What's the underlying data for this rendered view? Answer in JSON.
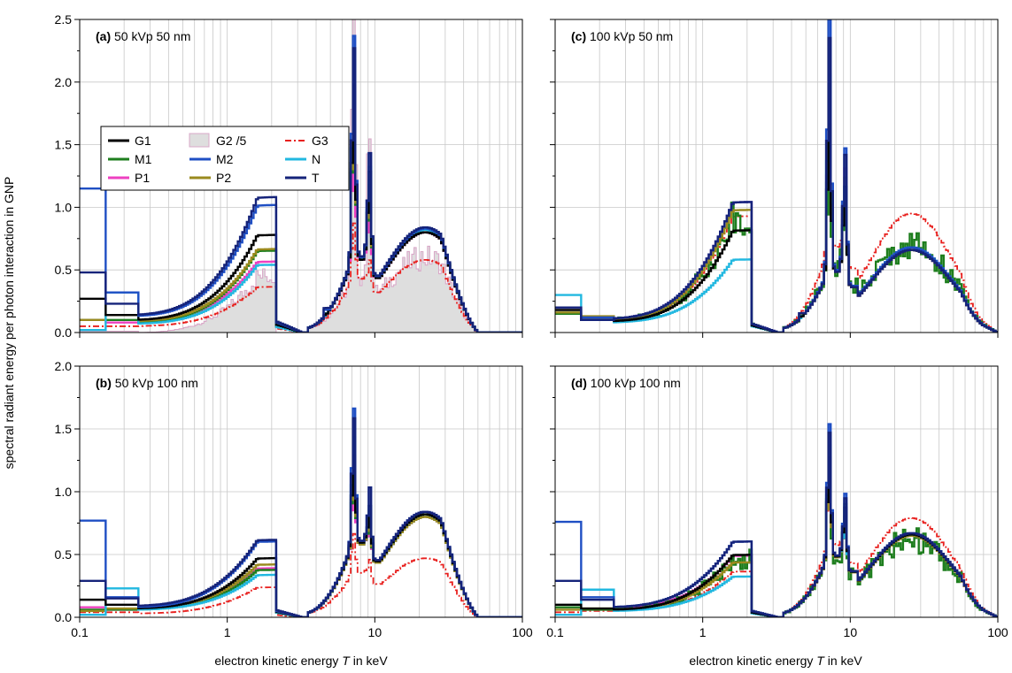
{
  "figure": {
    "ylabel": "spectral radiant energy per photon interaction in GNP",
    "xlabel_prefix": "electron kinetic energy ",
    "xlabel_var": "T",
    "xlabel_suffix": " in keV"
  },
  "legend": [
    {
      "name": "G1",
      "color": "#000000",
      "style": "solid"
    },
    {
      "name": "G2 /5",
      "color": "#d9a8c8",
      "style": "fill",
      "fill": "#dedede"
    },
    {
      "name": "G3",
      "color": "#e8201e",
      "style": "dashdot"
    },
    {
      "name": "M1",
      "color": "#1e7e1e",
      "style": "solid"
    },
    {
      "name": "M2",
      "color": "#1f4fc4",
      "style": "solid"
    },
    {
      "name": "N",
      "color": "#22b8e0",
      "style": "solid"
    },
    {
      "name": "P1",
      "color": "#ee40c0",
      "style": "solid"
    },
    {
      "name": "P2",
      "color": "#9a8a1e",
      "style": "solid"
    },
    {
      "name": "T",
      "color": "#15237a",
      "style": "solid"
    }
  ],
  "chart_data": [
    {
      "type": "line",
      "panel": "(a)",
      "title_parts": [
        "(a)",
        "50 kVp  50 nm"
      ],
      "xlim": [
        0.1,
        100
      ],
      "xscale": "log",
      "ylim": [
        0,
        2.5
      ],
      "yticks": [
        "0.0",
        "0.5",
        "1.0",
        "1.5",
        "2.0",
        "2.5"
      ],
      "xticks": [
        "0.1",
        "1",
        "10",
        "100"
      ],
      "grid": true,
      "legend_position": "top-left",
      "peaks": {
        "p1": 1.8,
        "p2": 7.2,
        "p3": 9.2,
        "hump": 22,
        "cutoff": 50
      },
      "series": [
        {
          "name": "G1",
          "step": [
            0.27,
            0.14
          ],
          "amps": [
            0.65,
            1.9,
            1.65,
            0.8
          ],
          "base": 0.1
        },
        {
          "name": "G3",
          "step": [
            0.05,
            0.05
          ],
          "amps": [
            0.3,
            0.8,
            0.7,
            0.58
          ],
          "base": 0.05
        },
        {
          "name": "M1",
          "step": [
            0.1,
            0.1
          ],
          "amps": [
            0.55,
            1.75,
            1.5,
            0.82
          ],
          "base": 0.08
        },
        {
          "name": "M2",
          "step": [
            1.15,
            0.32
          ],
          "amps": [
            0.85,
            2.3,
            1.85,
            0.83
          ],
          "base": 0.13
        },
        {
          "name": "N",
          "step": [
            0.02,
            0.32
          ],
          "amps": [
            0.45,
            2.1,
            1.7,
            0.82
          ],
          "base": 0.07
        },
        {
          "name": "P1",
          "step": [
            0.1,
            0.08
          ],
          "amps": [
            0.45,
            1.5,
            1.3,
            0.8
          ],
          "base": 0.09
        },
        {
          "name": "P2",
          "step": [
            0.1,
            0.14
          ],
          "amps": [
            0.55,
            1.8,
            1.55,
            0.82
          ],
          "base": 0.09
        },
        {
          "name": "T",
          "step": [
            0.48,
            0.23
          ],
          "amps": [
            0.9,
            2.2,
            1.85,
            0.84
          ],
          "base": 0.14
        },
        {
          "name": "G2 /5",
          "step": [
            0.01,
            0.01
          ],
          "amps": [
            0.45,
            2.5,
            2.4,
            0.6
          ],
          "base": 0.0
        }
      ]
    },
    {
      "type": "line",
      "panel": "(c)",
      "title_parts": [
        "(c)",
        "100 kVp  50 nm"
      ],
      "xlim": [
        0.1,
        100
      ],
      "xscale": "log",
      "ylim": [
        0,
        2.5
      ],
      "yticks": [
        "0.0",
        "0.5",
        "1.0",
        "1.5",
        "2.0",
        "2.5"
      ],
      "xticks": [
        "0.1",
        "1",
        "10",
        "100"
      ],
      "grid": true,
      "peaks": {
        "p1": 1.8,
        "p2": 7.2,
        "p3": 9.2,
        "hump": 26,
        "cutoff": 100
      },
      "series": [
        {
          "name": "G1",
          "step": [
            0.18,
            0.1
          ],
          "amps": [
            0.7,
            1.6,
            1.5,
            0.66
          ],
          "base": 0.09
        },
        {
          "name": "G3",
          "step": [
            0.15,
            0.1
          ],
          "amps": [
            0.8,
            1.5,
            1.3,
            0.95
          ],
          "base": 0.1
        },
        {
          "name": "M1",
          "step": [
            0.15,
            0.12
          ],
          "amps": [
            0.8,
            1.55,
            1.6,
            0.7
          ],
          "base": 0.1
        },
        {
          "name": "M2",
          "step": [
            0.2,
            0.12
          ],
          "amps": [
            0.9,
            2.45,
            1.92,
            0.68
          ],
          "base": 0.11
        },
        {
          "name": "N",
          "step": [
            0.3,
            0.1
          ],
          "amps": [
            0.48,
            2.0,
            1.5,
            0.68
          ],
          "base": 0.08
        },
        {
          "name": "P1",
          "step": [
            0.2,
            0.12
          ],
          "amps": [
            0.9,
            1.8,
            1.7,
            0.66
          ],
          "base": 0.11
        },
        {
          "name": "P2",
          "step": [
            0.16,
            0.13
          ],
          "amps": [
            0.85,
            1.7,
            1.6,
            0.66
          ],
          "base": 0.1
        },
        {
          "name": "T",
          "step": [
            0.2,
            0.1
          ],
          "amps": [
            0.9,
            2.3,
            1.85,
            0.66
          ],
          "base": 0.11
        }
      ]
    },
    {
      "type": "line",
      "panel": "(b)",
      "title_parts": [
        "(b)",
        "50 kVp 100 nm"
      ],
      "xlim": [
        0.1,
        100
      ],
      "xscale": "log",
      "ylim": [
        0,
        2.0
      ],
      "yticks": [
        "0.0",
        "0.5",
        "1.0",
        "1.5",
        "2.0"
      ],
      "xticks": [
        "0.1",
        "1",
        "10",
        "100"
      ],
      "grid": true,
      "peaks": {
        "p1": 1.8,
        "p2": 7.2,
        "p3": 9.2,
        "hump": 22,
        "cutoff": 50
      },
      "series": [
        {
          "name": "G1",
          "step": [
            0.14,
            0.1
          ],
          "amps": [
            0.38,
            1.2,
            1.1,
            0.82
          ],
          "base": 0.07
        },
        {
          "name": "G3",
          "step": [
            0.04,
            0.04
          ],
          "amps": [
            0.2,
            0.6,
            0.55,
            0.47
          ],
          "base": 0.03
        },
        {
          "name": "M1",
          "step": [
            0.06,
            0.06
          ],
          "amps": [
            0.3,
            1.1,
            1.0,
            0.8
          ],
          "base": 0.06
        },
        {
          "name": "M2",
          "step": [
            0.77,
            0.16
          ],
          "amps": [
            0.5,
            1.58,
            1.3,
            0.84
          ],
          "base": 0.08
        },
        {
          "name": "N",
          "step": [
            0.02,
            0.23
          ],
          "amps": [
            0.26,
            1.35,
            1.1,
            0.82
          ],
          "base": 0.06
        },
        {
          "name": "P1",
          "step": [
            0.08,
            0.06
          ],
          "amps": [
            0.3,
            1.0,
            0.95,
            0.8
          ],
          "base": 0.07
        },
        {
          "name": "P2",
          "step": [
            0.05,
            0.07
          ],
          "amps": [
            0.33,
            1.15,
            1.05,
            0.8
          ],
          "base": 0.07
        },
        {
          "name": "T",
          "step": [
            0.29,
            0.15
          ],
          "amps": [
            0.5,
            1.5,
            1.3,
            0.84
          ],
          "base": 0.09
        }
      ]
    },
    {
      "type": "line",
      "panel": "(d)",
      "title_parts": [
        "(d)",
        "100 kVp 100 nm"
      ],
      "xlim": [
        0.1,
        100
      ],
      "xscale": "log",
      "ylim": [
        0,
        2.0
      ],
      "yticks": [
        "0.0",
        "0.5",
        "1.0",
        "1.5",
        "2.0"
      ],
      "xticks": [
        "0.1",
        "1",
        "10",
        "100"
      ],
      "grid": true,
      "peaks": {
        "p1": 1.8,
        "p2": 7.2,
        "p3": 9.2,
        "hump": 26,
        "cutoff": 100
      },
      "series": [
        {
          "name": "G1",
          "step": [
            0.1,
            0.07
          ],
          "amps": [
            0.42,
            1.2,
            1.1,
            0.66
          ],
          "base": 0.06
        },
        {
          "name": "G3",
          "step": [
            0.04,
            0.05
          ],
          "amps": [
            0.3,
            1.0,
            0.9,
            0.79
          ],
          "base": 0.05
        },
        {
          "name": "M1",
          "step": [
            0.08,
            0.06
          ],
          "amps": [
            0.38,
            1.1,
            1.05,
            0.62
          ],
          "base": 0.06
        },
        {
          "name": "M2",
          "step": [
            0.76,
            0.16
          ],
          "amps": [
            0.5,
            1.47,
            1.25,
            0.67
          ],
          "base": 0.08
        },
        {
          "name": "N",
          "step": [
            0.02,
            0.22
          ],
          "amps": [
            0.26,
            1.3,
            1.0,
            0.66
          ],
          "base": 0.05
        },
        {
          "name": "P1",
          "step": [
            0.08,
            0.06
          ],
          "amps": [
            0.4,
            1.1,
            1.0,
            0.65
          ],
          "base": 0.07
        },
        {
          "name": "P2",
          "step": [
            0.06,
            0.07
          ],
          "amps": [
            0.36,
            1.1,
            1.0,
            0.65
          ],
          "base": 0.06
        },
        {
          "name": "T",
          "step": [
            0.29,
            0.14
          ],
          "amps": [
            0.5,
            1.4,
            1.2,
            0.67
          ],
          "base": 0.08
        }
      ]
    }
  ]
}
